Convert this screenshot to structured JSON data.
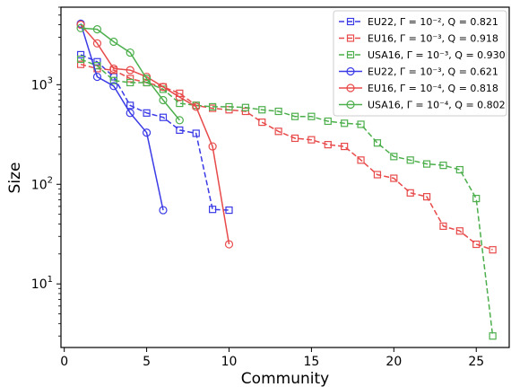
{
  "chart_data": {
    "type": "line",
    "xlabel": "Community",
    "ylabel": "Size",
    "xlim": [
      -0.2,
      27
    ],
    "ylim": [
      2.3,
      6000
    ],
    "yscale": "log",
    "legend_position": "top-right",
    "x_ticks": [
      0,
      5,
      10,
      15,
      20,
      25
    ],
    "y_ticks": [
      {
        "value": 10,
        "base": "10",
        "exp": "1"
      },
      {
        "value": 100,
        "base": "10",
        "exp": "2"
      },
      {
        "value": 1000,
        "base": "10",
        "exp": "3"
      }
    ],
    "series": [
      {
        "name": "EU22, Γ = 10⁻², Q = 0.821",
        "color": "#3a3ae6",
        "dashed": true,
        "marker": "square",
        "x": [
          1,
          2,
          3,
          4,
          5,
          6,
          7,
          8,
          9,
          10
        ],
        "y": [
          2000,
          1700,
          1200,
          620,
          520,
          470,
          350,
          325,
          56,
          55
        ]
      },
      {
        "name": "EU16, Γ = 10⁻³, Q = 0.918",
        "color": "#e84a4a",
        "dashed": true,
        "marker": "square",
        "x": [
          1,
          2,
          3,
          4,
          5,
          6,
          7,
          8,
          9,
          10,
          11,
          12,
          13,
          14,
          15,
          16,
          17,
          18,
          19,
          20,
          21,
          22,
          23,
          24,
          25,
          26
        ],
        "y": [
          1600,
          1450,
          1400,
          1150,
          1050,
          950,
          820,
          620,
          580,
          560,
          540,
          420,
          340,
          290,
          280,
          250,
          240,
          175,
          125,
          115,
          82,
          75,
          38,
          34,
          25,
          22
        ]
      },
      {
        "name": "USA16, Γ = 10⁻³, Q = 0.930",
        "color": "#4caf4c",
        "dashed": true,
        "marker": "square",
        "x": [
          1,
          2,
          3,
          4,
          5,
          6,
          7,
          8,
          9,
          10,
          11,
          12,
          13,
          14,
          15,
          16,
          17,
          18,
          19,
          20,
          21,
          22,
          23,
          24,
          25,
          26
        ],
        "y": [
          1800,
          1550,
          1100,
          1050,
          1050,
          900,
          650,
          620,
          600,
          600,
          590,
          560,
          540,
          480,
          480,
          430,
          410,
          400,
          260,
          190,
          175,
          160,
          155,
          140,
          72,
          3
        ]
      },
      {
        "name": "EU22, Γ = 10⁻³, Q = 0.621",
        "color": "#3a3ae6",
        "dashed": false,
        "marker": "circle",
        "x": [
          1,
          2,
          3,
          4,
          5,
          6
        ],
        "y": [
          4100,
          1200,
          970,
          520,
          330,
          55
        ]
      },
      {
        "name": "EU16, Γ = 10⁻⁴, Q = 0.818",
        "color": "#e84a4a",
        "dashed": false,
        "marker": "circle",
        "x": [
          1,
          2,
          3,
          4,
          5,
          6,
          7,
          8,
          9,
          10
        ],
        "y": [
          4000,
          2600,
          1450,
          1400,
          1200,
          950,
          750,
          600,
          240,
          25
        ]
      },
      {
        "name": "USA16, Γ = 10⁻⁴, Q = 0.802",
        "color": "#4caf4c",
        "dashed": false,
        "marker": "circle",
        "x": [
          1,
          2,
          3,
          4,
          5,
          6,
          7
        ],
        "y": [
          3700,
          3600,
          2700,
          2100,
          1150,
          700,
          440
        ]
      }
    ]
  }
}
